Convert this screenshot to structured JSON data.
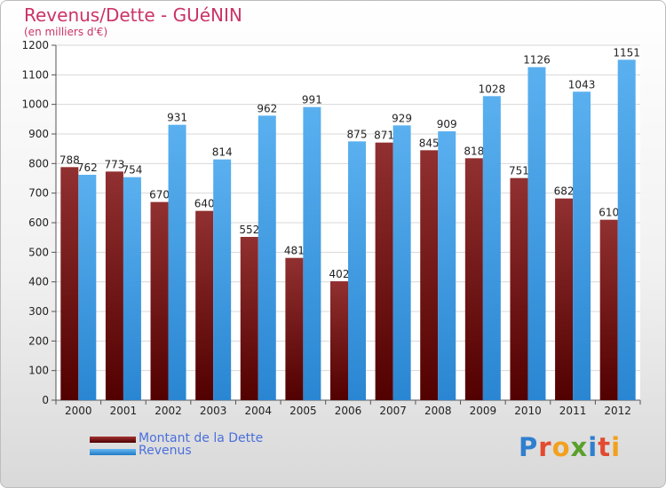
{
  "title": "Revenus/Dette - GUéNIN",
  "subtitle": "(en milliers d'€)",
  "logo": [
    "P",
    "r",
    "o",
    "x",
    "i",
    "t",
    "i"
  ],
  "logo_colors": [
    "#2f7fd0",
    "#e34a2f",
    "#f2a01e",
    "#5aa02c",
    "#2f7fd0",
    "#e34a2f",
    "#f2a01e"
  ],
  "chart_data": {
    "type": "bar",
    "categories": [
      "2000",
      "2001",
      "2002",
      "2003",
      "2004",
      "2005",
      "2006",
      "2007",
      "2008",
      "2009",
      "2010",
      "2011",
      "2012"
    ],
    "series": [
      {
        "name": "Montant de la Dette",
        "color": "#8b1a1a",
        "values": [
          788,
          773,
          670,
          640,
          552,
          481,
          402,
          871,
          845,
          818,
          751,
          682,
          610
        ]
      },
      {
        "name": "Revenus",
        "color": "#3399e6",
        "values": [
          762,
          754,
          931,
          814,
          962,
          991,
          875,
          929,
          909,
          1028,
          1126,
          1043,
          1151
        ]
      }
    ],
    "ylim": [
      0,
      1200
    ],
    "yticks": [
      0,
      100,
      200,
      300,
      400,
      500,
      600,
      700,
      800,
      900,
      1000,
      1100,
      1200
    ],
    "grid": true,
    "legend_position": "bottom-left"
  }
}
